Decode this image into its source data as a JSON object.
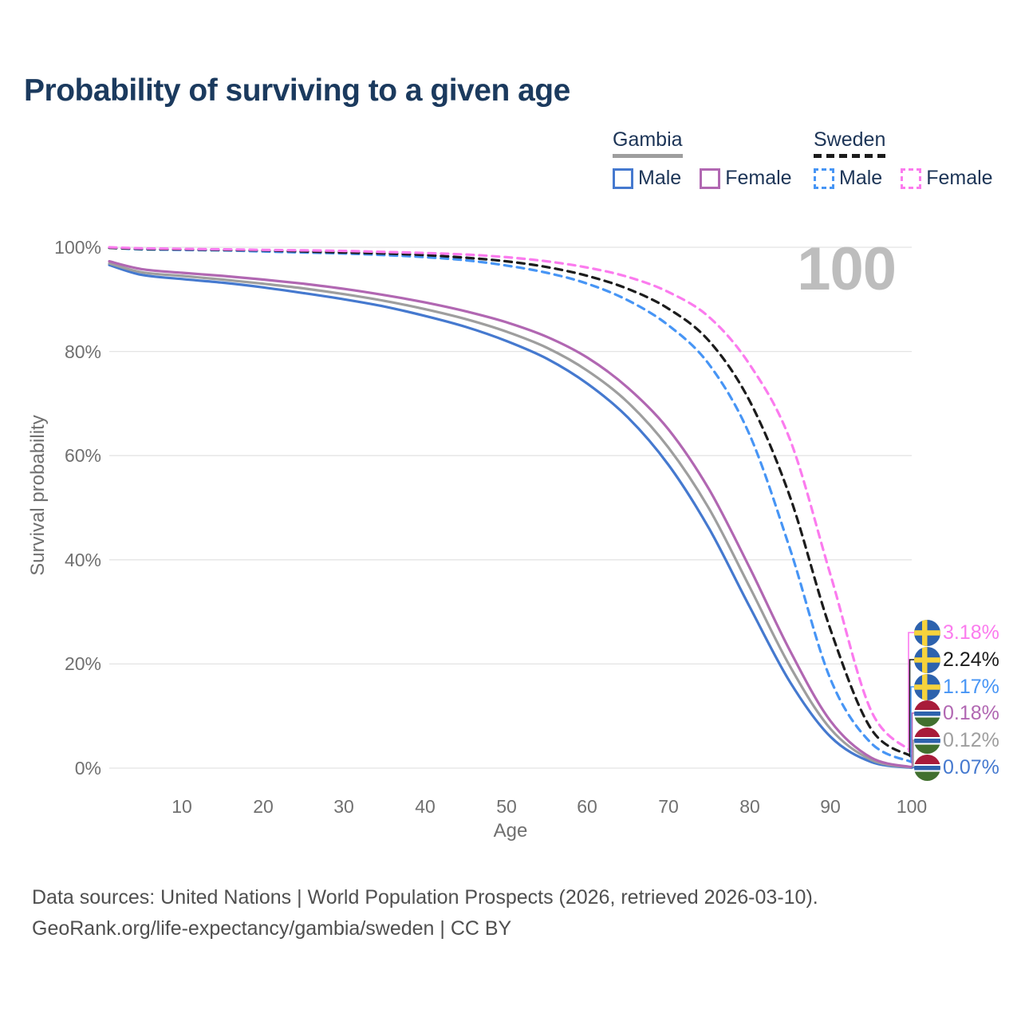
{
  "header": {
    "title": "Probability of surviving to a given age"
  },
  "legend": {
    "gambia": {
      "label": "Gambia",
      "male_label": "Male",
      "female_label": "Female"
    },
    "sweden": {
      "label": "Sweden",
      "male_label": "Male",
      "female_label": "Female"
    }
  },
  "chart_data": {
    "type": "line",
    "title": "Probability of surviving to a given age",
    "xlabel": "Age",
    "ylabel": "Survival probability",
    "xlim": [
      1,
      100
    ],
    "ylim": [
      0,
      100
    ],
    "grid": true,
    "legend_position": "top-right",
    "x_ticks": [
      "10",
      "20",
      "30",
      "40",
      "50",
      "60",
      "70",
      "80",
      "90",
      "100"
    ],
    "y_ticks": [
      "0%",
      "20%",
      "40%",
      "60%",
      "80%",
      "100%"
    ],
    "hover_age_label": "100",
    "ages": [
      1,
      5,
      10,
      15,
      20,
      25,
      30,
      35,
      40,
      45,
      50,
      55,
      60,
      65,
      70,
      75,
      80,
      85,
      90,
      95,
      100
    ],
    "series": [
      {
        "id": "gambia-male",
        "name": "Gambia Male",
        "color": "#4579cf",
        "dash": false,
        "values": [
          96.6,
          94.7,
          93.9,
          93.2,
          92.3,
          91.2,
          90.0,
          88.6,
          86.8,
          84.7,
          82.0,
          78.6,
          73.8,
          67.3,
          58.2,
          46.0,
          31.0,
          16.5,
          6.0,
          1.2,
          0.07
        ]
      },
      {
        "id": "gambia-total",
        "name": "Gambia",
        "color": "#9e9e9e",
        "dash": false,
        "values": [
          96.9,
          95.2,
          94.5,
          93.8,
          93.0,
          92.1,
          91.0,
          89.7,
          88.1,
          86.2,
          83.8,
          80.7,
          76.3,
          70.2,
          61.5,
          49.8,
          34.8,
          19.5,
          7.5,
          1.6,
          0.12
        ]
      },
      {
        "id": "gambia-female",
        "name": "Gambia Female",
        "color": "#b167b2",
        "dash": false,
        "values": [
          97.3,
          95.8,
          95.1,
          94.5,
          93.8,
          93.0,
          92.0,
          90.8,
          89.4,
          87.7,
          85.6,
          82.8,
          78.8,
          73.0,
          65.0,
          53.5,
          38.5,
          22.5,
          9.0,
          2.0,
          0.18
        ]
      },
      {
        "id": "sweden-male",
        "name": "Sweden Male",
        "color": "#4795f5",
        "dash": true,
        "values": [
          99.9,
          99.6,
          99.5,
          99.4,
          99.2,
          99.0,
          98.8,
          98.5,
          98.1,
          97.5,
          96.5,
          95.1,
          93.0,
          89.8,
          85.0,
          77.5,
          64.0,
          42.0,
          17.0,
          4.8,
          1.17
        ]
      },
      {
        "id": "sweden-total",
        "name": "Sweden",
        "color": "#1c1c1c",
        "dash": true,
        "values": [
          99.9,
          99.7,
          99.6,
          99.5,
          99.4,
          99.2,
          99.0,
          98.8,
          98.5,
          98.0,
          97.3,
          96.2,
          94.5,
          92.0,
          88.2,
          82.0,
          70.5,
          52.0,
          26.5,
          7.5,
          2.24
        ]
      },
      {
        "id": "sweden-female",
        "name": "Sweden Female",
        "color": "#fb7bee",
        "dash": true,
        "values": [
          100,
          99.8,
          99.7,
          99.6,
          99.5,
          99.4,
          99.3,
          99.1,
          98.9,
          98.6,
          98.1,
          97.3,
          96.1,
          94.3,
          91.4,
          86.6,
          77.5,
          63.0,
          37.0,
          11.0,
          3.18
        ]
      }
    ],
    "end_labels": [
      {
        "text": "3.18%",
        "color": "#fb7bee",
        "flag": "sweden",
        "series": "sweden-female"
      },
      {
        "text": "2.24%",
        "color": "#1c1c1c",
        "flag": "sweden",
        "series": "sweden-total"
      },
      {
        "text": "1.17%",
        "color": "#4795f5",
        "flag": "sweden",
        "series": "sweden-male"
      },
      {
        "text": "0.18%",
        "color": "#b167b2",
        "flag": "gambia",
        "series": "gambia-female"
      },
      {
        "text": "0.12%",
        "color": "#9e9e9e",
        "flag": "gambia",
        "series": "gambia-total"
      },
      {
        "text": "0.07%",
        "color": "#4579cf",
        "flag": "gambia",
        "series": "gambia-male"
      }
    ],
    "flag_colors": {
      "sweden_blue": "#2d62ad",
      "sweden_yellow": "#f6d33c",
      "gambia_red": "#a81c3a",
      "gambia_blue": "#2d62ad",
      "gambia_green": "#41702f",
      "gambia_white": "#ffffff"
    },
    "gridline_color": "#e4e4e4"
  },
  "footer": {
    "line1": "Data sources: United Nations | World Population Prospects (2026, retrieved 2026-03-10).",
    "line2": "GeoRank.org/life-expectancy/gambia/sweden | CC BY"
  }
}
